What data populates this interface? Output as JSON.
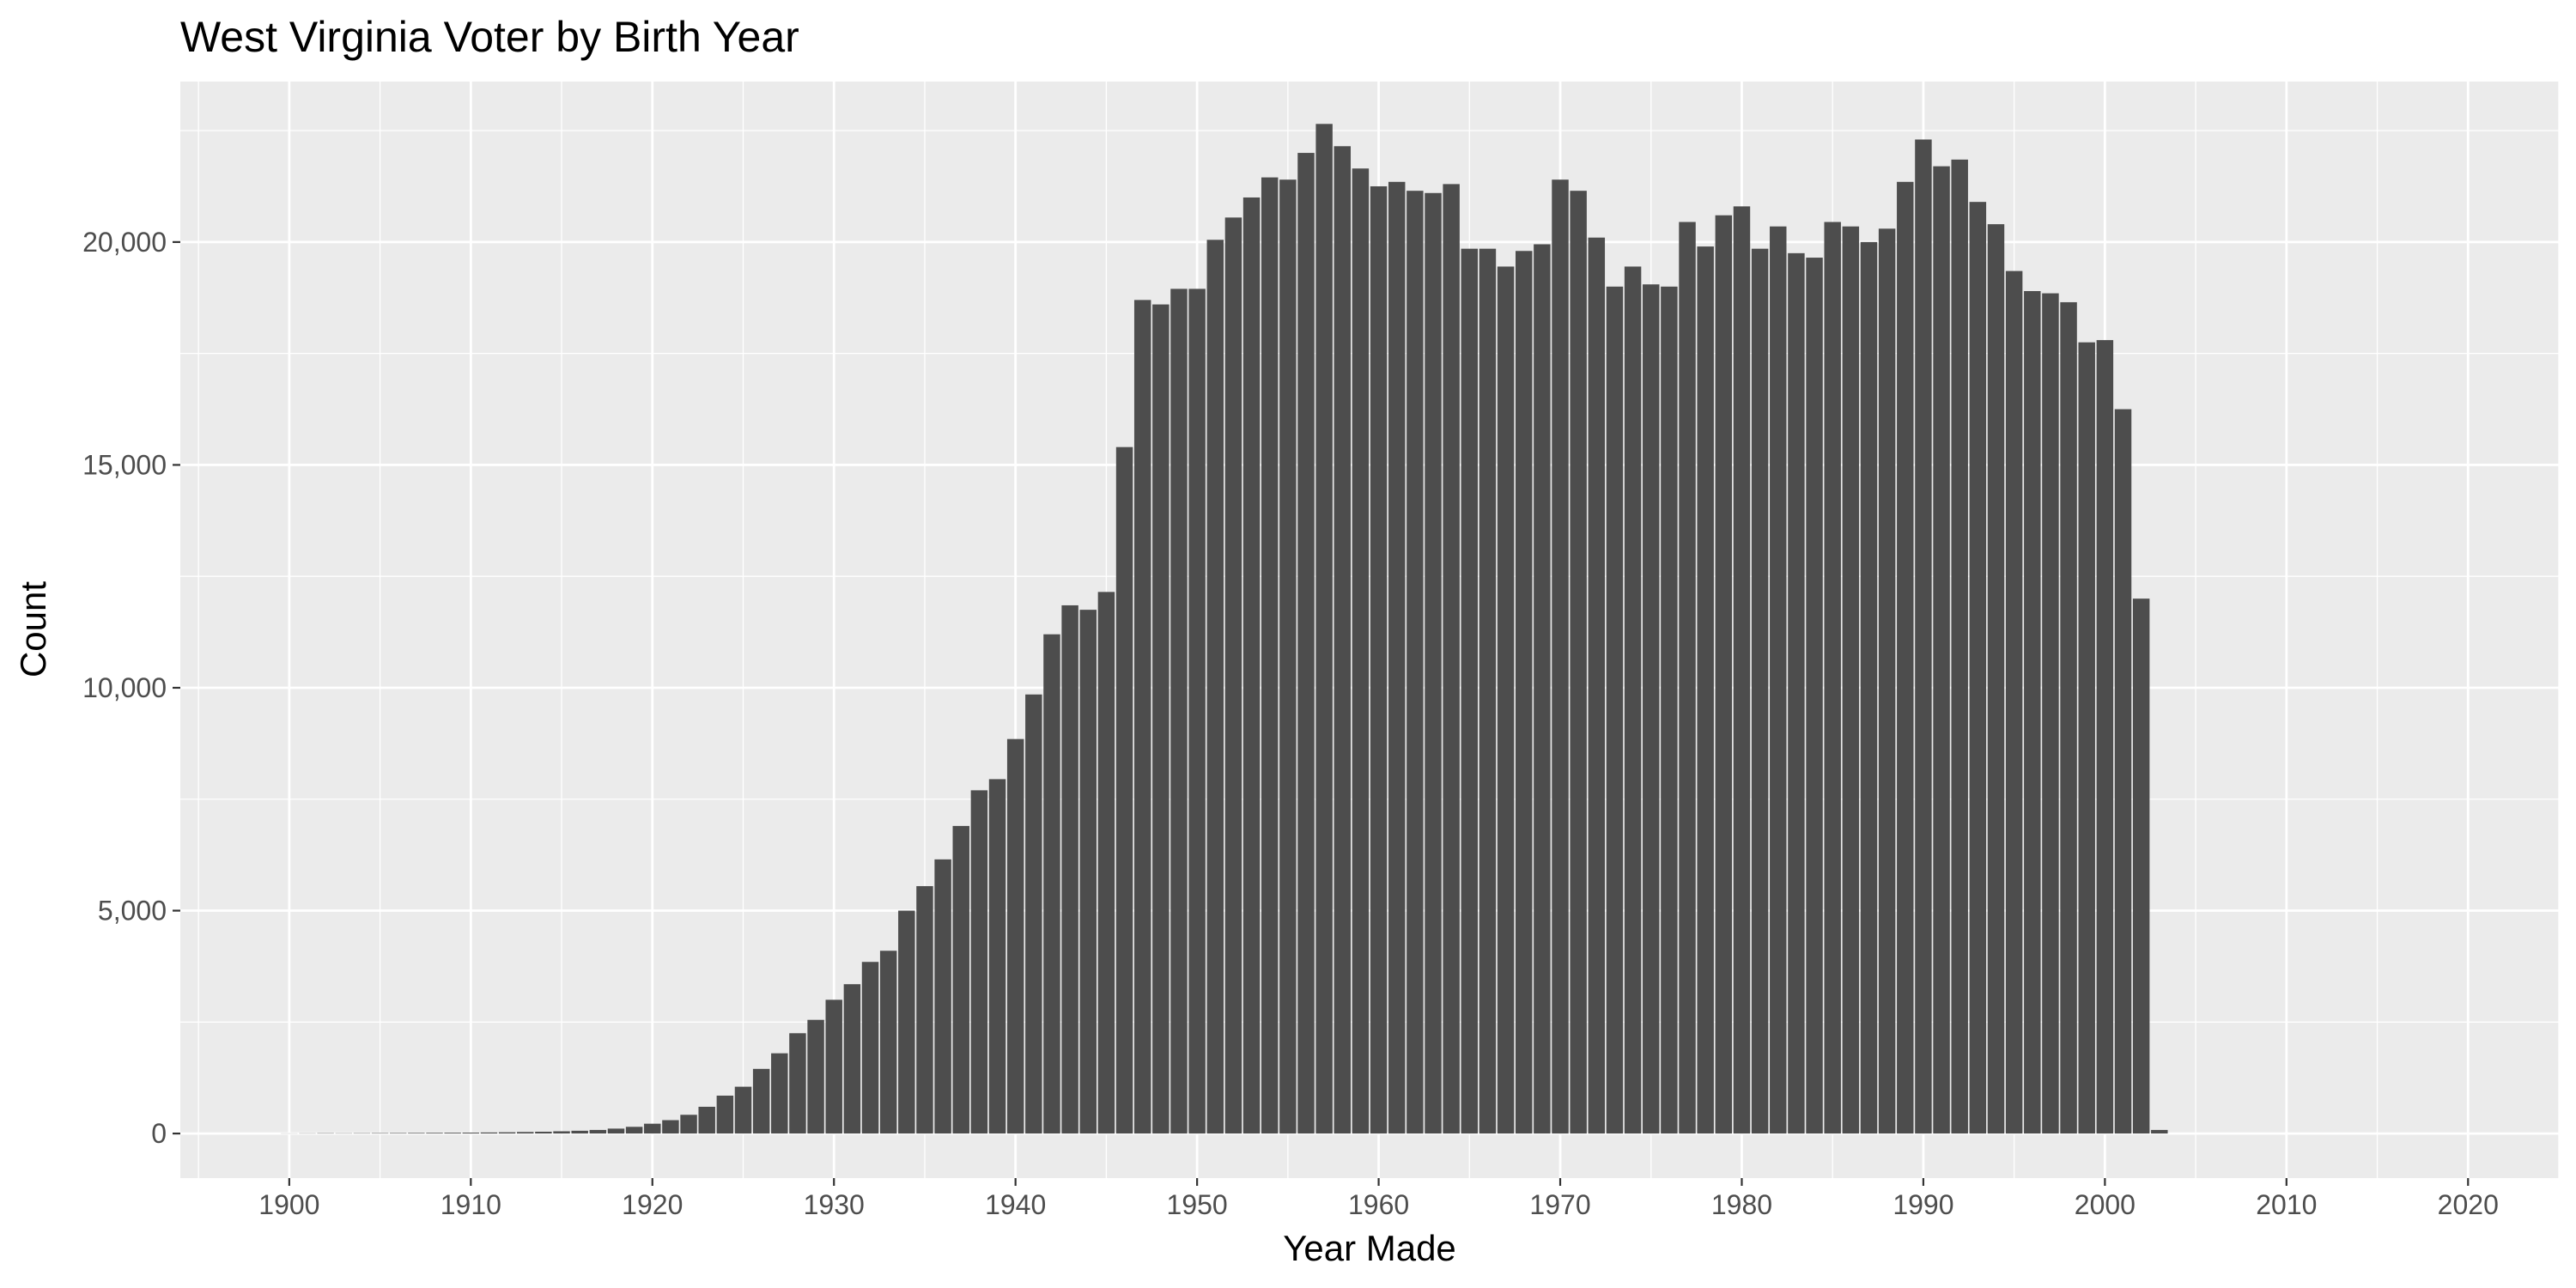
{
  "chart_data": {
    "type": "bar",
    "title": "West Virginia Voter by Birth Year",
    "xlabel": "Year Made",
    "ylabel": "Count",
    "xlim": [
      1894,
      2025
    ],
    "ylim": [
      -1000,
      23600
    ],
    "x_ticks": [
      1900,
      1910,
      1920,
      1930,
      1940,
      1950,
      1960,
      1970,
      1980,
      1990,
      2000,
      2010,
      2020
    ],
    "x_tick_labels": [
      "1900",
      "1910",
      "1920",
      "1930",
      "1940",
      "1950",
      "1960",
      "1970",
      "1980",
      "1990",
      "2000",
      "2010",
      "2020"
    ],
    "x_minor_ticks": [
      1895,
      1905,
      1915,
      1925,
      1935,
      1945,
      1955,
      1965,
      1975,
      1985,
      1995,
      2005,
      2015,
      2025
    ],
    "y_ticks": [
      0,
      5000,
      10000,
      15000,
      20000
    ],
    "y_tick_labels": [
      "0",
      "5,000",
      "10,000",
      "15,000",
      "20,000"
    ],
    "y_minor_ticks": [
      2500,
      7500,
      12500,
      17500,
      22500
    ],
    "grid": true,
    "legend": "none",
    "colors": {
      "panel_background": "#EBEBEB",
      "grid_line": "#FFFFFF",
      "bar_fill": "#4D4D4D",
      "tick_label": "#4D4D4D",
      "title": "#000000"
    },
    "x": [
      1900,
      1901,
      1902,
      1903,
      1904,
      1905,
      1906,
      1907,
      1908,
      1909,
      1910,
      1911,
      1912,
      1913,
      1914,
      1915,
      1916,
      1917,
      1918,
      1919,
      1920,
      1921,
      1922,
      1923,
      1924,
      1925,
      1926,
      1927,
      1928,
      1929,
      1930,
      1931,
      1932,
      1933,
      1934,
      1935,
      1936,
      1937,
      1938,
      1939,
      1940,
      1941,
      1942,
      1943,
      1944,
      1945,
      1946,
      1947,
      1948,
      1949,
      1950,
      1951,
      1952,
      1953,
      1954,
      1955,
      1956,
      1957,
      1958,
      1959,
      1960,
      1961,
      1962,
      1963,
      1964,
      1965,
      1966,
      1967,
      1968,
      1969,
      1970,
      1971,
      1972,
      1973,
      1974,
      1975,
      1976,
      1977,
      1978,
      1979,
      1980,
      1981,
      1982,
      1983,
      1984,
      1985,
      1986,
      1987,
      1988,
      1989,
      1990,
      1991,
      1992,
      1993,
      1994,
      1995,
      1996,
      1997,
      1998,
      1999,
      2000,
      2001,
      2002,
      2003
    ],
    "values": [
      3,
      5,
      8,
      6,
      8,
      10,
      12,
      14,
      16,
      18,
      20,
      24,
      28,
      34,
      40,
      50,
      62,
      80,
      110,
      150,
      220,
      300,
      420,
      600,
      850,
      1050,
      1450,
      1800,
      2250,
      2550,
      3000,
      3350,
      3850,
      4100,
      5000,
      5550,
      6150,
      6900,
      7700,
      7950,
      8850,
      9850,
      11200,
      11850,
      11750,
      12150,
      15400,
      18700,
      18600,
      18950,
      18950,
      20050,
      20550,
      21000,
      21450,
      21400,
      22000,
      22650,
      22150,
      21650,
      21250,
      21350,
      21150,
      21100,
      21300,
      19850,
      19850,
      19450,
      19800,
      19950,
      21400,
      21150,
      20100,
      19000,
      19450,
      19050,
      19000,
      20450,
      19900,
      20600,
      20800,
      19850,
      20350,
      19750,
      19650,
      20450,
      20350,
      20000,
      20300,
      21350,
      22300,
      21700,
      21850,
      20900,
      20400,
      19350,
      18900,
      18850,
      18650,
      17750,
      17800,
      16250,
      12000,
      80
    ]
  }
}
